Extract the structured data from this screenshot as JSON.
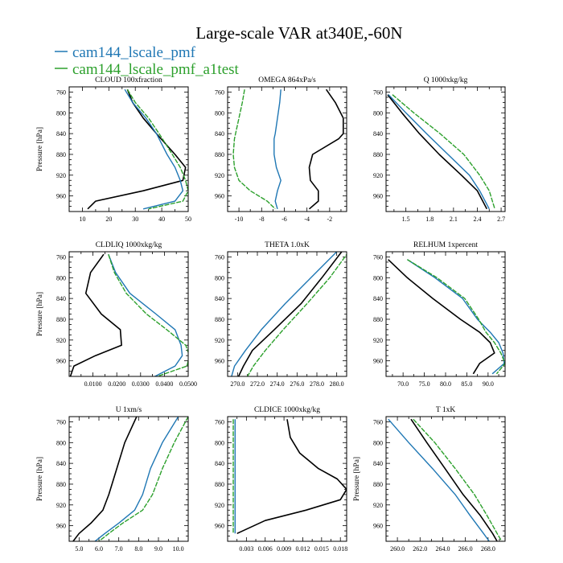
{
  "title": "Large-scale VAR at340E,-60N",
  "legend": [
    {
      "name": "cam144_lscale_pmf",
      "color": "#1f77b4"
    },
    {
      "name": "cam144_lscale_pmf_a1test",
      "color": "#2ca02c"
    }
  ],
  "series_colors": [
    "#000000",
    "#1f77b4",
    "#2ca02c"
  ],
  "chart_data": [
    {
      "type": "line",
      "title": "CLOUD  100xfraction",
      "ylabel": "Pressure [hPa]",
      "xlim": [
        5,
        50
      ],
      "ylim": [
        990,
        750
      ],
      "xticks": [
        10,
        20,
        30,
        40,
        50
      ],
      "xtick_labels": [
        "10",
        "20",
        "30",
        "40",
        "50"
      ],
      "yticks": [
        760,
        800,
        840,
        880,
        920,
        960
      ],
      "y": [
        755,
        780,
        810,
        840,
        880,
        905,
        930,
        950,
        970,
        985
      ],
      "series": [
        {
          "values": [
            27,
            29,
            33,
            38,
            45,
            49,
            48,
            33,
            15,
            12
          ]
        },
        {
          "values": [
            26,
            29,
            34,
            38,
            42,
            45,
            47,
            48,
            45,
            33
          ]
        },
        {
          "values": [
            27,
            30,
            35,
            39,
            44,
            47,
            49,
            50,
            48,
            35
          ]
        }
      ]
    },
    {
      "type": "line",
      "title": "OMEGA  864xPa/s",
      "ylabel": "",
      "xlim": [
        -11,
        -0.5
      ],
      "ylim": [
        990,
        750
      ],
      "xticks": [
        -10,
        -8,
        -6,
        -4,
        -2
      ],
      "xtick_labels": [
        "-10",
        "-8",
        "-6",
        "-4",
        "-2"
      ],
      "yticks": [
        760,
        800,
        840,
        880,
        920,
        960
      ],
      "y": [
        755,
        780,
        810,
        840,
        850,
        880,
        905,
        930,
        950,
        970,
        985
      ],
      "series": [
        {
          "values": [
            -2.3,
            -1.5,
            -0.8,
            -0.8,
            -1.2,
            -3.5,
            -3.8,
            -3.7,
            -3.0,
            -3.0,
            -3.8
          ]
        },
        {
          "values": [
            -6.3,
            -6.4,
            -6.6,
            -6.8,
            -6.9,
            -6.9,
            -6.7,
            -6.3,
            -6.6,
            -6.8,
            -6.6
          ]
        },
        {
          "values": [
            -9.5,
            -9.7,
            -10.0,
            -10.3,
            -10.4,
            -10.5,
            -10.4,
            -10.0,
            -9.0,
            -7.5,
            -6.8
          ]
        }
      ]
    },
    {
      "type": "line",
      "title": "Q  1000xkg/kg",
      "ylabel": "",
      "xlim": [
        1.25,
        2.75
      ],
      "ylim": [
        990,
        750
      ],
      "xticks": [
        1.5,
        1.8,
        2.1,
        2.4,
        2.7
      ],
      "xtick_labels": [
        "1.5",
        "1.8",
        "2.1",
        "2.4",
        "2.7"
      ],
      "yticks": [
        760,
        800,
        840,
        880,
        920,
        960
      ],
      "y": [
        765,
        800,
        840,
        880,
        920,
        950,
        985
      ],
      "series": [
        {
          "values": [
            1.27,
            1.45,
            1.67,
            1.92,
            2.2,
            2.4,
            2.52
          ]
        },
        {
          "values": [
            1.28,
            1.5,
            1.76,
            2.03,
            2.3,
            2.43,
            2.55
          ]
        },
        {
          "values": [
            1.33,
            1.6,
            1.93,
            2.23,
            2.43,
            2.55,
            2.62
          ]
        }
      ]
    },
    {
      "type": "line",
      "title": "CLDLIQ  1000xkg/kg",
      "ylabel": "Pressure [hPa]",
      "xlim": [
        0.0,
        0.05
      ],
      "ylim": [
        990,
        750
      ],
      "xticks": [
        0.01,
        0.02,
        0.03,
        0.04,
        0.05
      ],
      "xtick_labels": [
        "0.0100",
        "0.0200",
        "0.0300",
        "0.0400",
        "0.0500"
      ],
      "yticks": [
        760,
        800,
        840,
        880,
        920,
        960
      ],
      "y": [
        755,
        790,
        830,
        870,
        900,
        930,
        950,
        970,
        990
      ],
      "series": [
        {
          "values": [
            0.0145,
            0.009,
            0.007,
            0.0135,
            0.0215,
            0.022,
            0.011,
            0.002,
            0.0005
          ]
        },
        {
          "values": [
            0.0165,
            0.0195,
            0.0255,
            0.0365,
            0.0445,
            0.047,
            0.0475,
            0.0445,
            0.036
          ]
        },
        {
          "values": [
            0.0165,
            0.019,
            0.024,
            0.0325,
            0.041,
            0.049,
            0.0505,
            0.0495,
            0.037
          ]
        }
      ]
    },
    {
      "type": "line",
      "title": "THETA  1.0xK",
      "ylabel": "",
      "xlim": [
        269,
        281
      ],
      "ylim": [
        990,
        750
      ],
      "xticks": [
        270,
        272,
        274,
        276,
        278,
        280
      ],
      "xtick_labels": [
        "270.0",
        "272.0",
        "274.0",
        "276.0",
        "278.0",
        "280.0"
      ],
      "yticks": [
        760,
        800,
        840,
        880,
        920,
        960
      ],
      "y": [
        750,
        800,
        850,
        900,
        940,
        970,
        990
      ],
      "series": [
        {
          "values": [
            280.5,
            278.5,
            276.4,
            273.7,
            271.5,
            270.6,
            270.1
          ]
        },
        {
          "values": [
            280.0,
            277.4,
            274.8,
            272.4,
            270.8,
            269.7,
            269.4
          ]
        },
        {
          "values": [
            281.2,
            279.3,
            277.0,
            274.6,
            272.8,
            271.6,
            271.0
          ]
        }
      ]
    },
    {
      "type": "line",
      "title": "RELHUM  1xpercent",
      "ylabel": "",
      "xlim": [
        66,
        94
      ],
      "ylim": [
        990,
        750
      ],
      "xticks": [
        70,
        75,
        80,
        85,
        90
      ],
      "xtick_labels": [
        "70.0",
        "75.0",
        "80.0",
        "85.0",
        "90.0"
      ],
      "yticks": [
        760,
        800,
        840,
        880,
        920,
        960
      ],
      "y": [
        765,
        800,
        840,
        880,
        905,
        925,
        945,
        965,
        985
      ],
      "series": [
        {
          "values": [
            66.5,
            71.0,
            77.0,
            83.5,
            88.0,
            90.5,
            91.5,
            88.0,
            86.5
          ]
        },
        {
          "values": [
            71.0,
            77.5,
            84.0,
            87.5,
            90.5,
            92.5,
            93.5,
            93.8,
            91.0
          ]
        },
        {
          "values": [
            71.0,
            78.0,
            84.5,
            87.8,
            89.5,
            91.5,
            93.0,
            94.0,
            92.0
          ]
        }
      ]
    },
    {
      "type": "line",
      "title": "U  1xm/s",
      "ylabel": "Pressure [hPa]",
      "xlim": [
        4.5,
        10.5
      ],
      "ylim": [
        990,
        750
      ],
      "xticks": [
        5,
        6,
        7,
        8,
        9,
        10
      ],
      "xtick_labels": [
        "5.0",
        "6.0",
        "7.0",
        "8.0",
        "9.0",
        "10.0"
      ],
      "yticks": [
        760,
        800,
        840,
        880,
        920,
        960
      ],
      "y": [
        750,
        800,
        850,
        900,
        930,
        955,
        975,
        990
      ],
      "series": [
        {
          "values": [
            7.9,
            7.3,
            6.9,
            6.5,
            6.2,
            5.6,
            5.0,
            4.7
          ]
        },
        {
          "values": [
            10.0,
            9.2,
            8.6,
            8.2,
            7.8,
            7.0,
            6.3,
            5.8
          ]
        },
        {
          "values": [
            10.5,
            9.8,
            9.2,
            8.7,
            8.2,
            7.2,
            6.5,
            6.0
          ]
        }
      ]
    },
    {
      "type": "line",
      "title": "CLDICE  1000xkg/kg",
      "ylabel": "",
      "xlim": [
        0.0,
        0.019
      ],
      "ylim": [
        990,
        750
      ],
      "xticks": [
        0.003,
        0.006,
        0.009,
        0.012,
        0.015,
        0.018
      ],
      "xtick_labels": [
        "0.003",
        "0.006",
        "0.009",
        "0.012",
        "0.015",
        "0.018"
      ],
      "yticks": [
        760,
        800,
        840,
        880,
        920,
        960
      ],
      "y": [
        755,
        790,
        820,
        850,
        870,
        890,
        910,
        930,
        950,
        975
      ],
      "series": [
        {
          "values": [
            0.0095,
            0.01,
            0.0115,
            0.0145,
            0.0175,
            0.019,
            0.018,
            0.0125,
            0.006,
            0.0015
          ]
        },
        {
          "values": [
            0.0012,
            0.0012,
            0.0012,
            0.0012,
            0.0012,
            0.0012,
            0.0012,
            0.0012,
            0.0012,
            0.0012
          ]
        },
        {
          "values": [
            0.0009,
            0.0009,
            0.0009,
            0.0009,
            0.0009,
            0.0009,
            0.0009,
            0.0009,
            0.0009,
            0.0009
          ]
        }
      ]
    },
    {
      "type": "line",
      "title": "T  1xK",
      "ylabel": "Pressure [hPa]",
      "xlim": [
        259,
        269.5
      ],
      "ylim": [
        990,
        750
      ],
      "xticks": [
        260,
        262,
        264,
        266,
        268
      ],
      "xtick_labels": [
        "260.0",
        "262.0",
        "264.0",
        "266.0",
        "268.0"
      ],
      "yticks": [
        760,
        800,
        840,
        880,
        920,
        960
      ],
      "y": [
        755,
        800,
        850,
        900,
        940,
        975,
        990
      ],
      "series": [
        {
          "values": [
            261.2,
            262.6,
            264.2,
            265.8,
            267.3,
            268.4,
            268.8
          ]
        },
        {
          "values": [
            259.2,
            261.0,
            263.1,
            265.1,
            266.4,
            267.6,
            268.1
          ]
        },
        {
          "values": [
            261.4,
            263.3,
            265.1,
            266.8,
            267.9,
            268.8,
            269.2
          ]
        }
      ]
    }
  ]
}
